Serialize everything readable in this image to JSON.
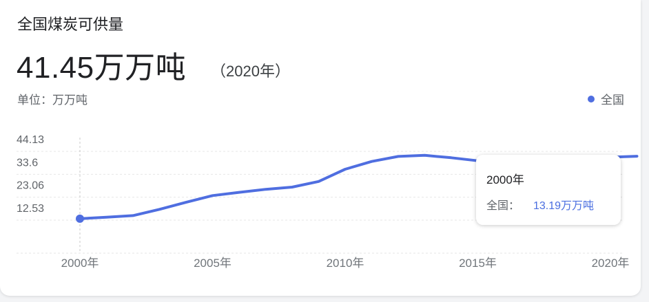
{
  "header": {
    "title": "全国煤炭可供量",
    "value": "41.45万万吨",
    "value_year": "（2020年）",
    "unit": "单位：万万吨"
  },
  "legend": {
    "label": "全国",
    "color": "#4f6ee0"
  },
  "tooltip": {
    "title": "2000年",
    "label": "全国：",
    "value": "13.19万万吨"
  },
  "chart_data": {
    "type": "line",
    "title": "全国煤炭可供量",
    "ylabel": "",
    "xlabel": "",
    "ylim": [
      7.3,
      46.5
    ],
    "xlim": [
      2000,
      2021
    ],
    "y_ticks": [
      12.53,
      23.06,
      33.6,
      44.13
    ],
    "y_tick_labels": [
      "12.53",
      "23.06",
      "33.6",
      "44.13"
    ],
    "x_ticks": [
      2000,
      2005,
      2010,
      2015,
      2020
    ],
    "x_tick_labels": [
      "2000年",
      "2005年",
      "2010年",
      "2015年",
      "2020年"
    ],
    "grid": true,
    "legend_position": "top-right",
    "highlight_x": 2000,
    "series": [
      {
        "name": "全国",
        "color": "#4f6ee0",
        "x": [
          2000,
          2001,
          2002,
          2003,
          2004,
          2005,
          2006,
          2007,
          2008,
          2009,
          2010,
          2011,
          2012,
          2013,
          2014,
          2015,
          2016,
          2017,
          2018,
          2019,
          2020,
          2021
        ],
        "values": [
          13.19,
          13.9,
          14.6,
          17.5,
          20.7,
          23.8,
          25.3,
          26.7,
          27.7,
          30.3,
          35.9,
          39.5,
          41.8,
          42.3,
          41.2,
          39.8,
          39.0,
          40.0,
          40.4,
          40.6,
          41.45,
          41.9
        ]
      }
    ]
  }
}
